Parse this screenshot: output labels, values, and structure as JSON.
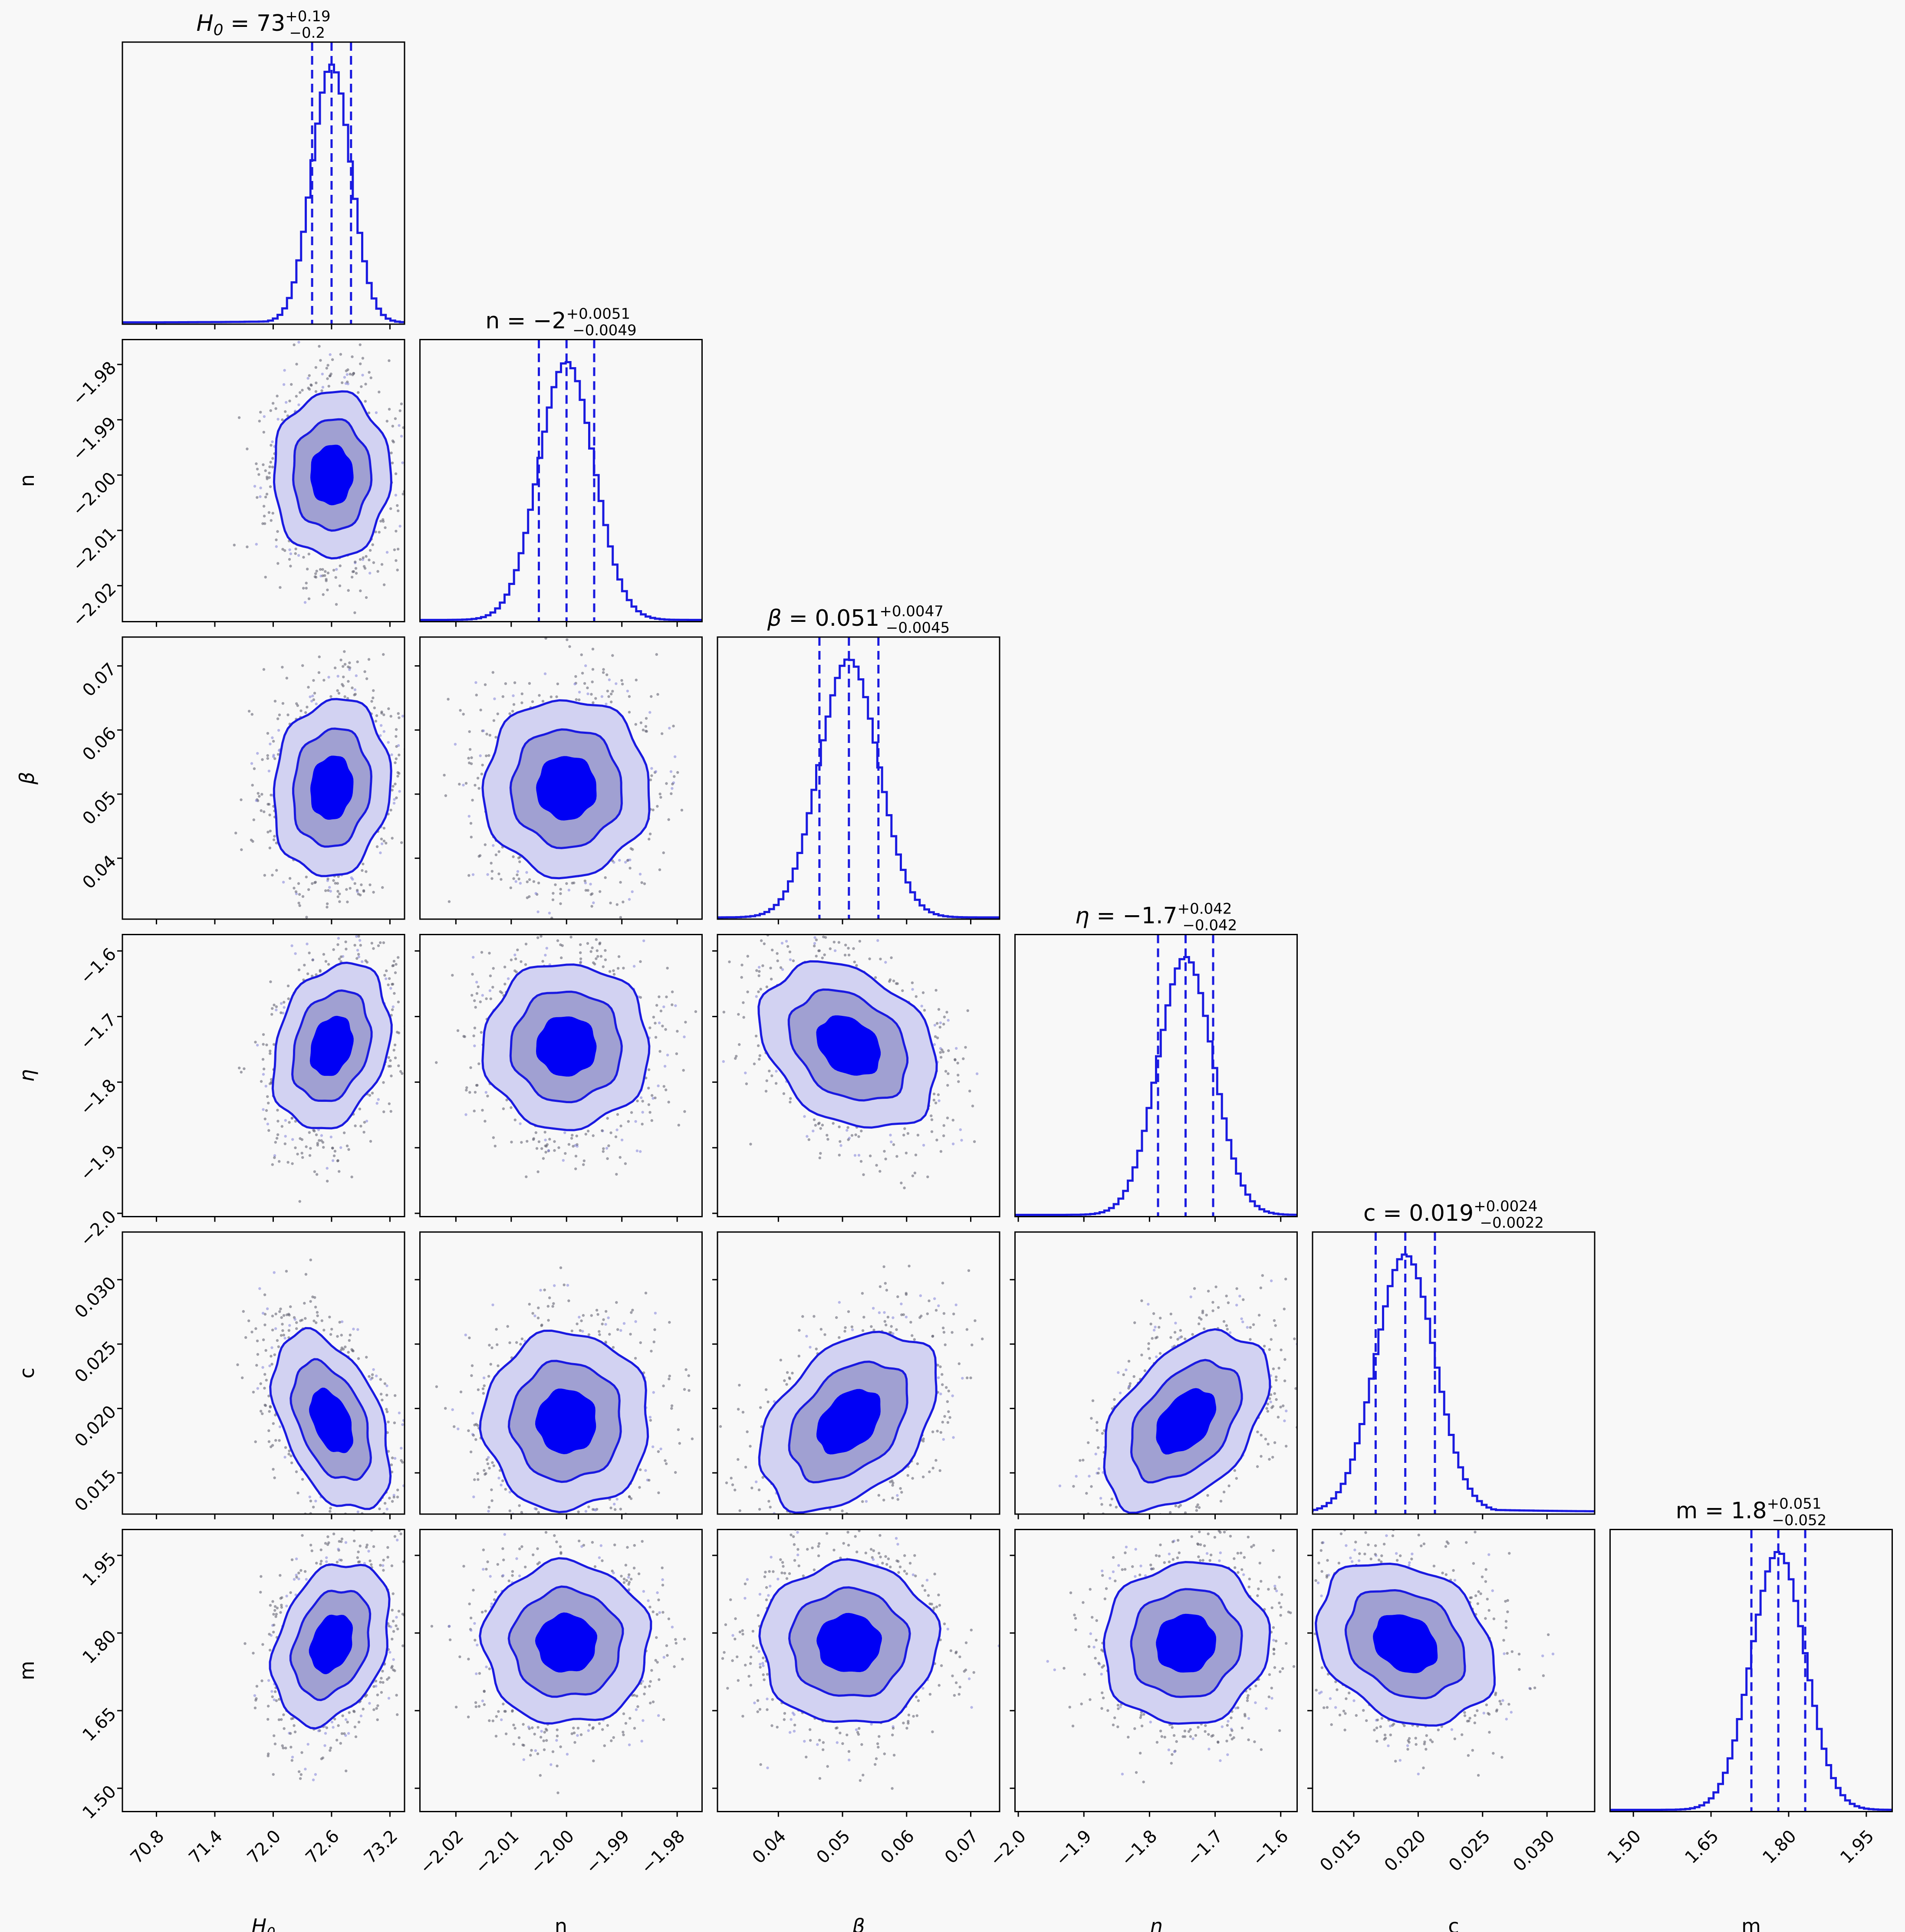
{
  "chart_data": {
    "type": "corner",
    "colors": {
      "line": "#1a1ae0",
      "fill_1sigma": "#0000f5",
      "fill_2sigma": "#a0a0d2",
      "fill_3sigma": "#d2d2f2",
      "samples": "#555566",
      "background": "#f8f8f8"
    },
    "parameters": [
      {
        "key": "H0",
        "label": "H0",
        "title": {
          "lhs": "H0",
          "median": "73",
          "plus": "+0.19",
          "minus": "−0.2"
        },
        "range": [
          70.45,
          73.35
        ],
        "ticks": [
          70.8,
          71.4,
          72.0,
          72.6,
          73.2
        ],
        "tick_labels": [
          "70.8",
          "71.4",
          "72.0",
          "72.6",
          "73.2"
        ],
        "median": 72.6,
        "sigma": 0.2
      },
      {
        "key": "n",
        "label": "n",
        "title": {
          "lhs": "n",
          "median": "−2",
          "plus": "+0.0051",
          "minus": "−0.0049"
        },
        "range": [
          -2.0265,
          -1.9755
        ],
        "ticks": [
          -2.02,
          -2.01,
          -2.0,
          -1.99,
          -1.98
        ],
        "tick_labels": [
          "−2.02",
          "−2.01",
          "−2.00",
          "−1.99",
          "−1.98"
        ],
        "median": -2.0,
        "sigma": 0.005
      },
      {
        "key": "beta",
        "label": "β",
        "title": {
          "lhs": "β",
          "median": "0.051",
          "plus": "+0.0047",
          "minus": "−0.0045"
        },
        "range": [
          0.0305,
          0.0745
        ],
        "ticks": [
          0.04,
          0.05,
          0.06,
          0.07
        ],
        "tick_labels": [
          "0.04",
          "0.05",
          "0.06",
          "0.07"
        ],
        "median": 0.051,
        "sigma": 0.0046
      },
      {
        "key": "eta",
        "label": "η",
        "title": {
          "lhs": "η",
          "median": "−1.7",
          "plus": "+0.042",
          "minus": "−0.042"
        },
        "range": [
          -2.005,
          -1.575
        ],
        "ticks": [
          -2.0,
          -1.9,
          -1.8,
          -1.7,
          -1.6
        ],
        "tick_labels": [
          "−2.0",
          "−1.9",
          "−1.8",
          "−1.7",
          "−1.6"
        ],
        "median": -1.745,
        "sigma": 0.042
      },
      {
        "key": "c",
        "label": "c",
        "title": {
          "lhs": "c",
          "median": "0.019",
          "plus": "+0.0024",
          "minus": "−0.0022"
        },
        "range": [
          0.0118,
          0.0337
        ],
        "ticks": [
          0.015,
          0.02,
          0.025,
          0.03
        ],
        "tick_labels": [
          "0.015",
          "0.020",
          "0.025",
          "0.030"
        ],
        "median": 0.019,
        "sigma": 0.0023
      },
      {
        "key": "m",
        "label": "m",
        "title": {
          "lhs": "m",
          "median": "1.8",
          "plus": "+0.051",
          "minus": "−0.052"
        },
        "range": [
          1.455,
          2.0
        ],
        "ticks": [
          1.5,
          1.65,
          1.8,
          1.95
        ],
        "tick_labels": [
          "1.50",
          "1.65",
          "1.80",
          "1.95"
        ],
        "median": 1.78,
        "sigma": 0.052
      }
    ],
    "correlations": [
      {
        "row": "n",
        "col": "H0",
        "rho": 0.0
      },
      {
        "row": "beta",
        "col": "H0",
        "rho": 0.1
      },
      {
        "row": "beta",
        "col": "n",
        "rho": 0.0
      },
      {
        "row": "eta",
        "col": "H0",
        "rho": 0.25
      },
      {
        "row": "eta",
        "col": "n",
        "rho": 0.0
      },
      {
        "row": "eta",
        "col": "beta",
        "rho": -0.3
      },
      {
        "row": "c",
        "col": "H0",
        "rho": -0.45
      },
      {
        "row": "c",
        "col": "n",
        "rho": 0.0
      },
      {
        "row": "c",
        "col": "beta",
        "rho": 0.4
      },
      {
        "row": "c",
        "col": "eta",
        "rho": 0.45
      },
      {
        "row": "m",
        "col": "H0",
        "rho": 0.3
      },
      {
        "row": "m",
        "col": "n",
        "rho": 0.0
      },
      {
        "row": "m",
        "col": "beta",
        "rho": 0.0
      },
      {
        "row": "m",
        "col": "eta",
        "rho": 0.05
      },
      {
        "row": "m",
        "col": "c",
        "rho": -0.25
      }
    ],
    "contour_levels_sigma": [
      1,
      2,
      3
    ],
    "quantile_lines": "dashed at 16th, 50th, 84th percentiles"
  }
}
